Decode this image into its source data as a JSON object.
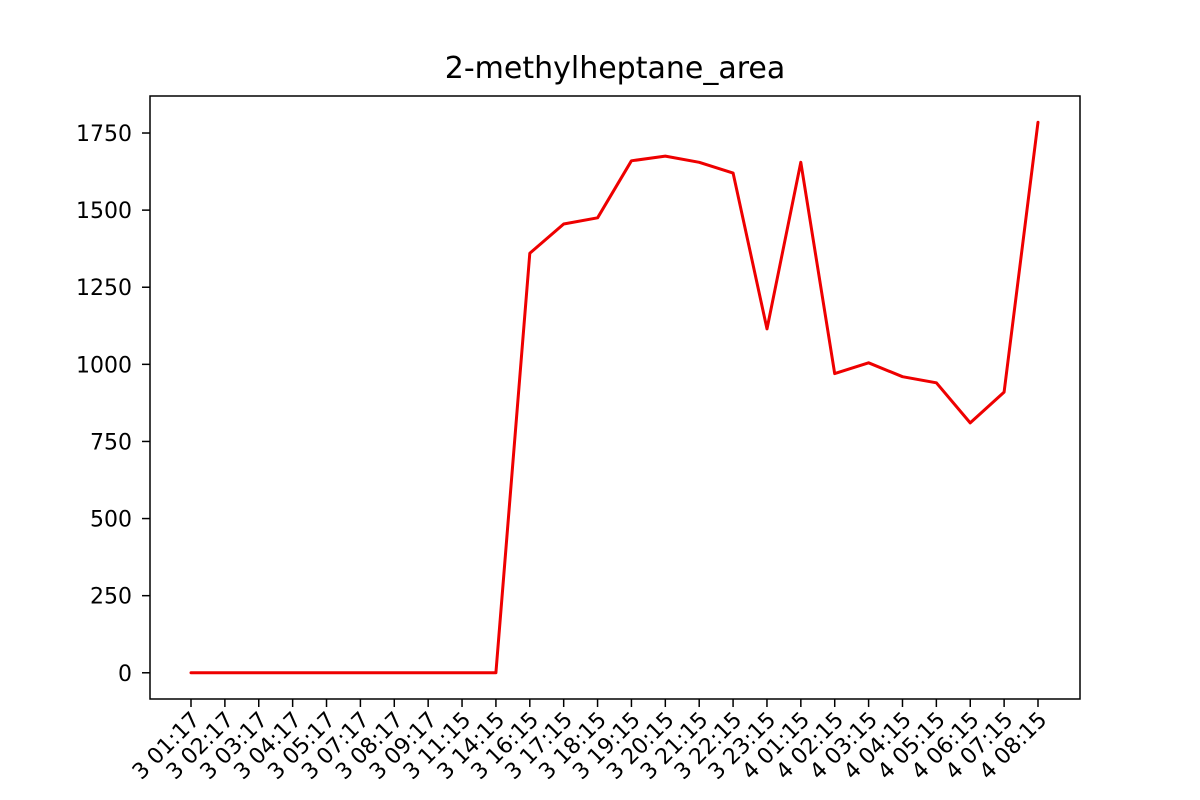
{
  "chart_data": {
    "type": "line",
    "title": "2-methylheptane_area",
    "xlabel": "",
    "ylabel": "",
    "x_tick_labels": [
      "3 01:17",
      "3 02:17",
      "3 03:17",
      "3 04:17",
      "3 05:17",
      "3 07:17",
      "3 08:17",
      "3 09:17",
      "3 11:15",
      "3 14:15",
      "3 16:15",
      "3 17:15",
      "3 18:15",
      "3 19:15",
      "3 20:15",
      "3 21:15",
      "3 22:15",
      "3 23:15",
      "4 01:15",
      "4 02:15",
      "4 03:15",
      "4 04:15",
      "4 05:15",
      "4 06:15",
      "4 07:15",
      "4 08:15"
    ],
    "y_ticks": [
      0,
      250,
      500,
      750,
      1000,
      1250,
      1500,
      1750
    ],
    "ylim": [
      -85,
      1870
    ],
    "grid": false,
    "legend": "none",
    "series": [
      {
        "color": "#ee0000",
        "values": [
          0,
          0,
          0,
          0,
          0,
          0,
          0,
          0,
          0,
          0,
          1360,
          1455,
          1475,
          1660,
          1675,
          1655,
          1620,
          1115,
          1655,
          970,
          1005,
          960,
          940,
          810,
          910,
          1785
        ]
      }
    ]
  }
}
